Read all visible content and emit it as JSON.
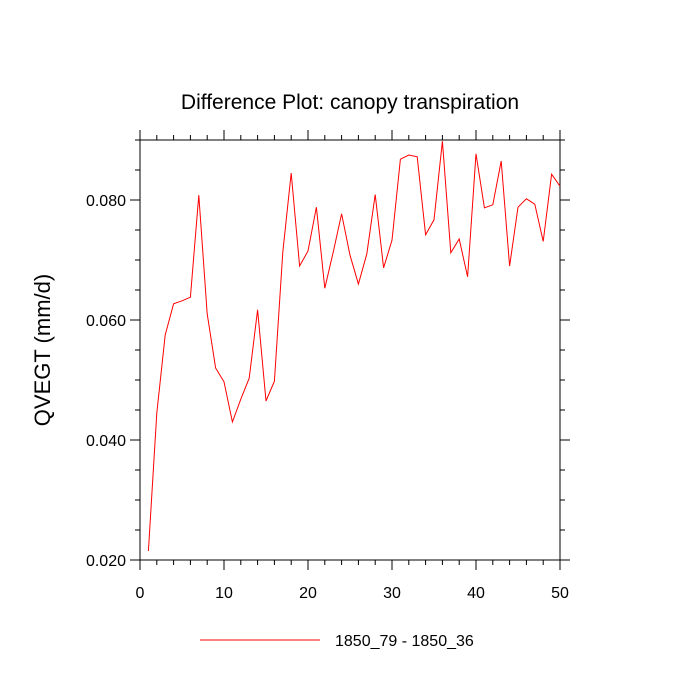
{
  "chart_data": {
    "type": "line",
    "title": "Difference Plot: canopy transpiration",
    "xlabel": "",
    "ylabel": "QVEGT  (mm/d)",
    "xlim": [
      0,
      50
    ],
    "ylim": [
      0.02,
      0.09
    ],
    "x_ticks": [
      0,
      10,
      20,
      30,
      40,
      50
    ],
    "x_tick_labels": [
      "0",
      "10",
      "20",
      "30",
      "40",
      "50"
    ],
    "y_ticks": [
      0.02,
      0.04,
      0.06,
      0.08
    ],
    "y_tick_labels": [
      "0.020",
      "0.040",
      "0.060",
      "0.080"
    ],
    "grid": false,
    "legend_position": "bottom-center",
    "series": [
      {
        "name": "1850_79 - 1850_36",
        "color": "#ff0000",
        "x": [
          1,
          2,
          3,
          4,
          5,
          6,
          7,
          8,
          9,
          10,
          11,
          12,
          13,
          14,
          15,
          16,
          17,
          18,
          19,
          20,
          21,
          22,
          23,
          24,
          25,
          26,
          27,
          28,
          29,
          30,
          31,
          32,
          33,
          34,
          35,
          36,
          37,
          38,
          39,
          40,
          41,
          42,
          43,
          44,
          45,
          46,
          47,
          48,
          49,
          50
        ],
        "values": [
          0.0215,
          0.0445,
          0.0575,
          0.0627,
          0.0632,
          0.0638,
          0.0808,
          0.061,
          0.052,
          0.0497,
          0.043,
          0.0468,
          0.0503,
          0.0617,
          0.0465,
          0.0498,
          0.0713,
          0.0845,
          0.069,
          0.0715,
          0.0788,
          0.0653,
          0.0713,
          0.0777,
          0.0708,
          0.066,
          0.071,
          0.0809,
          0.0687,
          0.0733,
          0.0868,
          0.0875,
          0.0872,
          0.0742,
          0.0767,
          0.0898,
          0.0712,
          0.0735,
          0.0672,
          0.0877,
          0.0787,
          0.0792,
          0.0865,
          0.069,
          0.0788,
          0.0802,
          0.0793,
          0.0731,
          0.0843,
          0.0823
        ]
      }
    ]
  }
}
